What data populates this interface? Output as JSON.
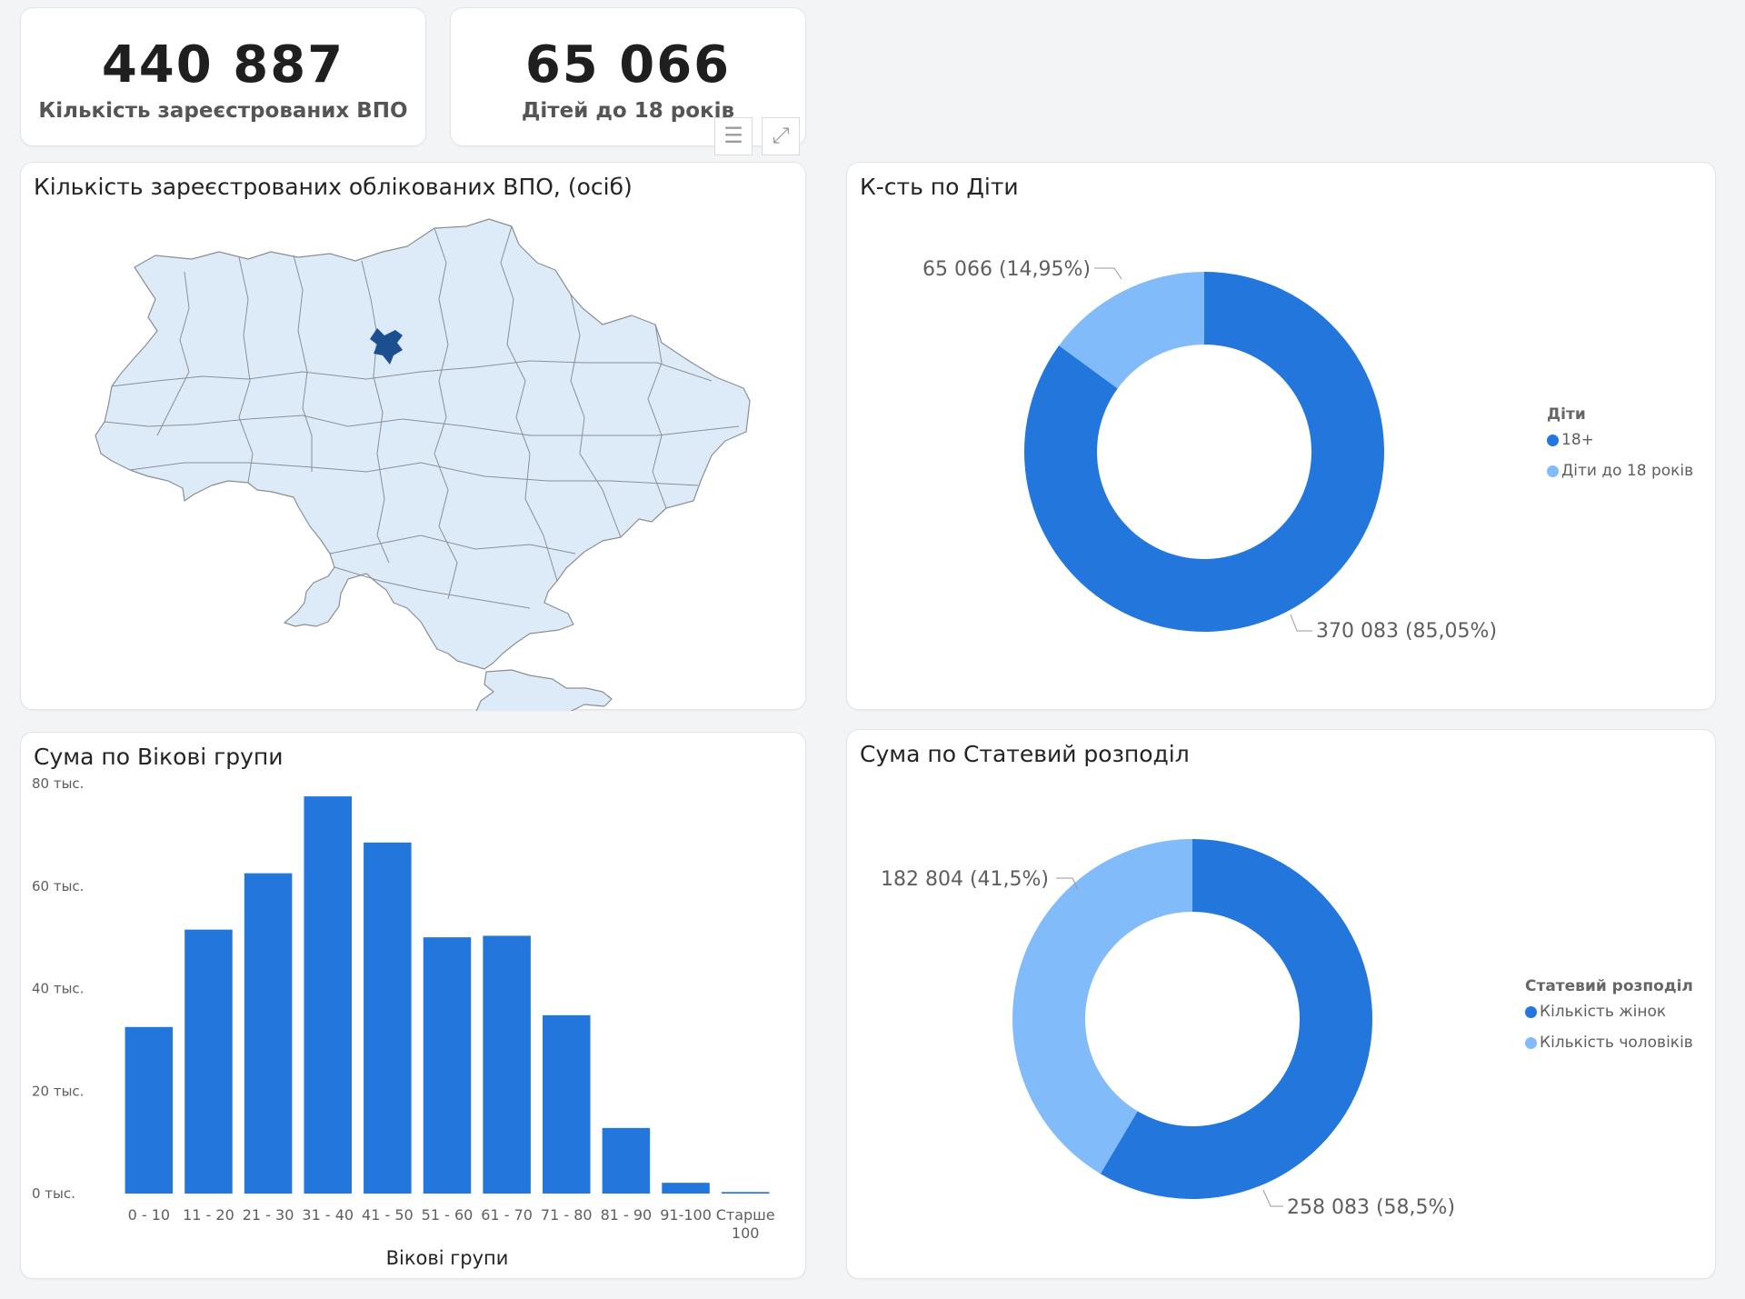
{
  "colors": {
    "primary": "#2276DC",
    "light": "#82BBFA",
    "map_fill": "#DDEBF9",
    "map_highlight": "#1B4F8F"
  },
  "kpi": [
    {
      "value": "440 887",
      "label": "Кількість зареєстрованих ВПО"
    },
    {
      "value": "65 066",
      "label": "Дітей до 18 років"
    }
  ],
  "header_icons": [
    "filter-icon",
    "focus-mode-icon"
  ],
  "map_visual": {
    "title": "Кількість зареєстрованих облікованих ВПО, (осіб)"
  },
  "children_visual": {
    "title": "К-сть по Діти",
    "legend_title": "Діти",
    "label_children": "65 066 (14,95%)",
    "label_adults": "370 083 (85,05%)"
  },
  "age_visual": {
    "title": "Сума по Вікові групи"
  },
  "gender_visual": {
    "title": "Сума по Статевий розподіл",
    "legend_title": "Статевий розподіл",
    "label_men": "182 804 (41,5%)",
    "label_women": "258 083 (58,5%)"
  },
  "chart_data": [
    {
      "type": "pie",
      "title": "К-сть по Діти",
      "legend_title": "Діти",
      "categories": [
        "18+",
        "Діти до 18 років"
      ],
      "values": [
        370083,
        65066
      ],
      "percent_labels": [
        "85,05%",
        "14,95%"
      ],
      "legend": "right"
    },
    {
      "type": "bar",
      "title": "Сума по Вікові групи",
      "xlabel": "Вікові групи",
      "ylabel": "",
      "categories": [
        "0 - 10",
        "11 - 20",
        "21 - 30",
        "31 - 40",
        "41 - 50",
        "51 - 60",
        "61 - 70",
        "71 - 80",
        "81 - 90",
        "91-100",
        "Старше 100"
      ],
      "values": [
        32500,
        51500,
        62500,
        77500,
        68500,
        50000,
        50300,
        34800,
        12800,
        2100,
        300
      ],
      "yticks": [
        "0 тыс.",
        "20 тыс.",
        "40 тыс.",
        "60 тыс.",
        "80 тыс."
      ],
      "ylim": [
        0,
        80000
      ],
      "grid": false
    },
    {
      "type": "pie",
      "title": "Сума по Статевий розподіл",
      "legend_title": "Статевий розподіл",
      "categories": [
        "Кількість жінок",
        "Кількість чоловіків"
      ],
      "values": [
        258083,
        182804
      ],
      "percent_labels": [
        "58,5%",
        "41,5%"
      ],
      "legend": "right"
    }
  ]
}
